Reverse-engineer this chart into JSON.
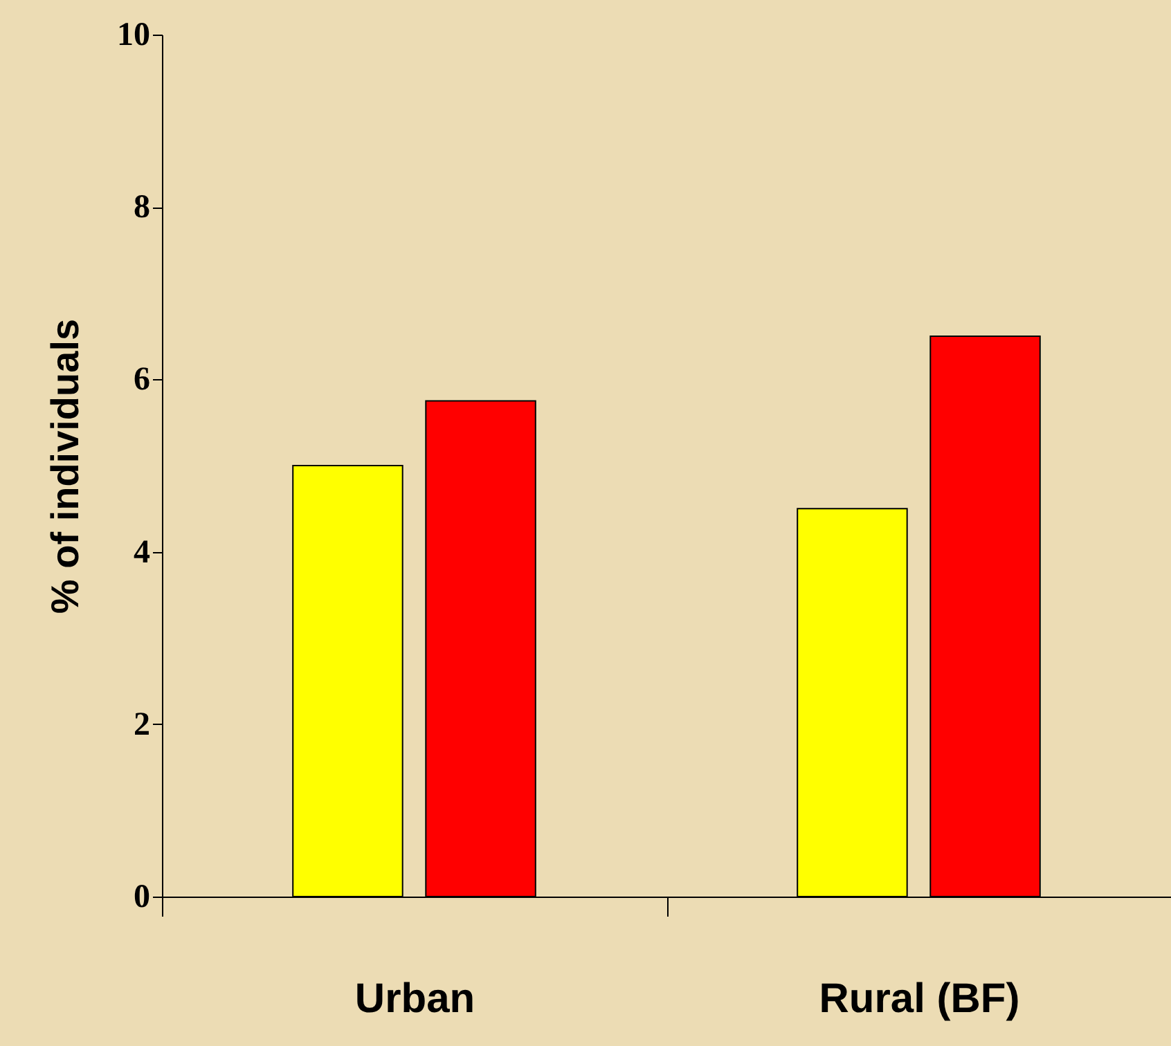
{
  "chart_data": {
    "type": "bar",
    "ylabel": "% of individuals",
    "categories": [
      "Urban",
      "Rural (BF)"
    ],
    "series": [
      {
        "color": "#ffff00",
        "values": [
          5.0,
          4.5
        ]
      },
      {
        "color": "#ff0000",
        "values": [
          5.75,
          6.5
        ]
      }
    ],
    "ylim": [
      0,
      10
    ],
    "yticks": [
      0,
      2,
      4,
      6,
      8,
      10
    ],
    "grid": false,
    "legend": false
  }
}
